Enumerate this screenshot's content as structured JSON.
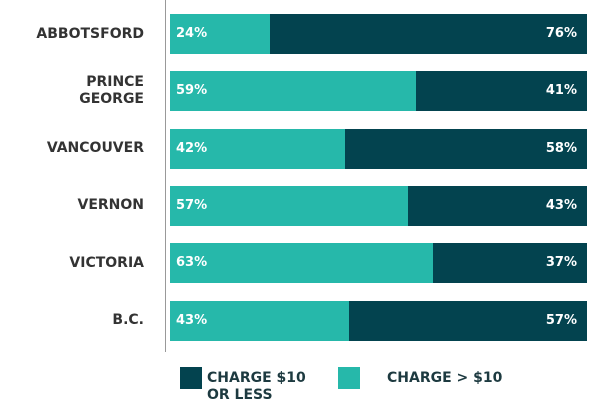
{
  "chart_data": {
    "type": "stacked-bar-horizontal",
    "categories": [
      "ABBOTSFORD",
      "PRINCE GEORGE",
      "VANCOUVER",
      "VERNON",
      "VICTORIA",
      "B.C."
    ],
    "series": [
      {
        "name": "CHARGE > $10",
        "color": "#26b8aa",
        "values": [
          24,
          59,
          42,
          57,
          63,
          43
        ],
        "value_labels": [
          "24%",
          "59%",
          "42%",
          "57%",
          "63%",
          "43%"
        ]
      },
      {
        "name": "CHARGE $10 OR LESS",
        "color": "#03434f",
        "values": [
          76,
          41,
          58,
          43,
          37,
          57
        ],
        "value_labels": [
          "76%",
          "41%",
          "58%",
          "43%",
          "37%",
          "57%"
        ]
      }
    ]
  }
}
